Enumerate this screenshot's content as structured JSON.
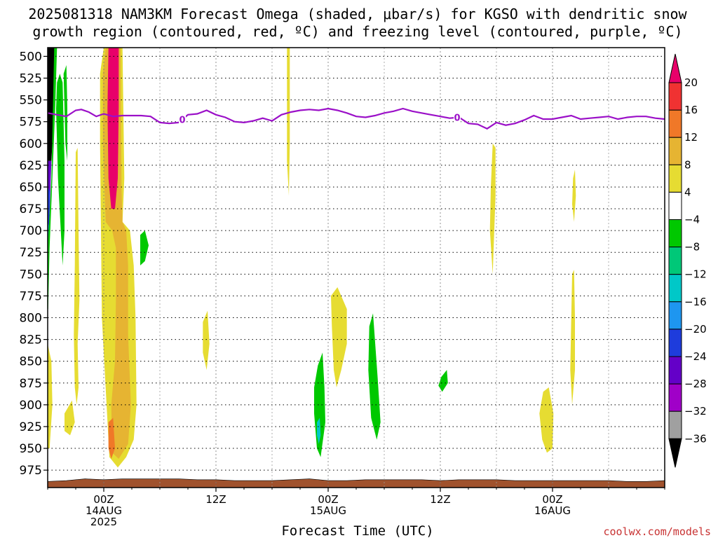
{
  "title": {
    "line1": "2025081318 NAM3KM Forecast Omega (shaded, μbar/s) for KGSO with dendritic snow",
    "line2": "growth region (contoured, red, ºC) and freezing level (contoured, purple, ºC)"
  },
  "credit": "coolwx.com/models",
  "chart_data": {
    "type": "contour",
    "title": "2025081318 NAM3KM Forecast Omega (shaded, μbar/s) for KGSO with dendritic snow growth region (contoured, red, ºC) and freezing level (contoured, purple, ºC)",
    "xlabel": "Forecast Time (UTC)",
    "ylabel": "",
    "x_range_hours": [
      -6,
      60
    ],
    "y_axis": {
      "reversed": true,
      "range": [
        490,
        995
      ],
      "grid": true
    },
    "y_ticks": [
      500,
      525,
      550,
      575,
      600,
      625,
      650,
      675,
      700,
      725,
      750,
      775,
      800,
      825,
      850,
      875,
      900,
      925,
      950,
      975
    ],
    "x_ticks": [
      {
        "hour": 0,
        "lines": [
          "00Z",
          "14AUG",
          "2025"
        ]
      },
      {
        "hour": 12,
        "lines": [
          "12Z"
        ]
      },
      {
        "hour": 24,
        "lines": [
          "00Z",
          "15AUG"
        ]
      },
      {
        "hour": 36,
        "lines": [
          "12Z"
        ]
      },
      {
        "hour": 48,
        "lines": [
          "00Z",
          "16AUG"
        ]
      }
    ],
    "colorbar": {
      "labels": [
        "20",
        "16",
        "12",
        "8",
        "4",
        "−4",
        "−8",
        "−12",
        "−16",
        "−20",
        "−24",
        "−28",
        "−32",
        "−36"
      ],
      "colors": [
        "#e8006a",
        "#f03232",
        "#f07828",
        "#e6b432",
        "#e6dc32",
        "#ffffff",
        "#00c800",
        "#00c878",
        "#00c8c8",
        "#1e96f0",
        "#1e3cdc",
        "#6400c8",
        "#a000c8",
        "#a0a0a0"
      ],
      "top_arrow_color": "#e8006a",
      "bottom_arrow_color": "#000000"
    },
    "freezing_level": {
      "color": "#9b10c8",
      "label": "0",
      "label_hours": [
        8.4,
        37.8
      ],
      "points": [
        [
          -6,
          565
        ],
        [
          -5,
          567
        ],
        [
          -4,
          569
        ],
        [
          -3,
          562
        ],
        [
          -2.4,
          561
        ],
        [
          -1.6,
          564
        ],
        [
          -0.8,
          569
        ],
        [
          0,
          566
        ],
        [
          1,
          569
        ],
        [
          2,
          568
        ],
        [
          3,
          568
        ],
        [
          4,
          568
        ],
        [
          5,
          569
        ],
        [
          6,
          576
        ],
        [
          7,
          577
        ],
        [
          8,
          576
        ],
        [
          9,
          567
        ],
        [
          10,
          566
        ],
        [
          11,
          562
        ],
        [
          12,
          567
        ],
        [
          13,
          570
        ],
        [
          14,
          575
        ],
        [
          15,
          576
        ],
        [
          16,
          574
        ],
        [
          17,
          571
        ],
        [
          18,
          574
        ],
        [
          19,
          567
        ],
        [
          20,
          564
        ],
        [
          21,
          562
        ],
        [
          22,
          561
        ],
        [
          23,
          562
        ],
        [
          24,
          560
        ],
        [
          25,
          562
        ],
        [
          26,
          565
        ],
        [
          27,
          569
        ],
        [
          28,
          570
        ],
        [
          29,
          568
        ],
        [
          30,
          565
        ],
        [
          31,
          563
        ],
        [
          32,
          560
        ],
        [
          33,
          563
        ],
        [
          34,
          565
        ],
        [
          35,
          567
        ],
        [
          36,
          569
        ],
        [
          37,
          571
        ],
        [
          38,
          570
        ],
        [
          39,
          577
        ],
        [
          40,
          578
        ],
        [
          41,
          583
        ],
        [
          42,
          576
        ],
        [
          43,
          579
        ],
        [
          44,
          577
        ],
        [
          45,
          573
        ],
        [
          46,
          568
        ],
        [
          47,
          572
        ],
        [
          48,
          572
        ],
        [
          49,
          570
        ],
        [
          50,
          568
        ],
        [
          51,
          572
        ],
        [
          52,
          571
        ],
        [
          53,
          570
        ],
        [
          54,
          569
        ],
        [
          55,
          572
        ],
        [
          56,
          570
        ],
        [
          57,
          569
        ],
        [
          58,
          569
        ],
        [
          59,
          571
        ],
        [
          60,
          572
        ]
      ]
    },
    "terrain": {
      "color": "#a0522d",
      "points": [
        [
          -6,
          988
        ],
        [
          -4,
          987
        ],
        [
          -2,
          985
        ],
        [
          0,
          986
        ],
        [
          2,
          985
        ],
        [
          4,
          985
        ],
        [
          6,
          985
        ],
        [
          8,
          985
        ],
        [
          10,
          986
        ],
        [
          12,
          986
        ],
        [
          14,
          987
        ],
        [
          16,
          987
        ],
        [
          18,
          987
        ],
        [
          20,
          986
        ],
        [
          22,
          985
        ],
        [
          24,
          987
        ],
        [
          26,
          987
        ],
        [
          28,
          986
        ],
        [
          30,
          986
        ],
        [
          32,
          986
        ],
        [
          34,
          986
        ],
        [
          36,
          987
        ],
        [
          38,
          986
        ],
        [
          40,
          986
        ],
        [
          42,
          986
        ],
        [
          44,
          987
        ],
        [
          46,
          987
        ],
        [
          48,
          987
        ],
        [
          50,
          987
        ],
        [
          52,
          987
        ],
        [
          54,
          987
        ],
        [
          56,
          988
        ],
        [
          58,
          988
        ],
        [
          60,
          987
        ]
      ]
    },
    "omega_regions": [
      {
        "color": "#e6dc32",
        "points": [
          [
            0,
            490
          ],
          [
            2.0,
            490
          ],
          [
            2.2,
            640
          ],
          [
            2.0,
            690
          ],
          [
            2.8,
            700
          ],
          [
            3.2,
            740
          ],
          [
            3.4,
            800
          ],
          [
            3.5,
            900
          ],
          [
            3.2,
            940
          ],
          [
            2.4,
            960
          ],
          [
            1.5,
            972
          ],
          [
            0.6,
            960
          ],
          [
            0.3,
            900
          ],
          [
            -0.2,
            800
          ],
          [
            -0.3,
            700
          ],
          [
            -0.4,
            600
          ],
          [
            -0.4,
            520
          ]
        ]
      },
      {
        "color": "#e6b432",
        "points": [
          [
            0.2,
            490
          ],
          [
            1.8,
            490
          ],
          [
            1.9,
            650
          ],
          [
            2.0,
            690
          ],
          [
            2.4,
            700
          ],
          [
            2.6,
            740
          ],
          [
            2.6,
            820
          ],
          [
            2.9,
            900
          ],
          [
            2.6,
            945
          ],
          [
            1.6,
            962
          ],
          [
            0.9,
            955
          ],
          [
            0.8,
            900
          ],
          [
            1.2,
            850
          ],
          [
            1.3,
            780
          ],
          [
            1.3,
            720
          ],
          [
            0.9,
            700
          ],
          [
            0.2,
            690
          ],
          [
            -0.1,
            600
          ],
          [
            -0.1,
            520
          ]
        ]
      },
      {
        "color": "#e8006a",
        "points": [
          [
            0.5,
            490
          ],
          [
            1.6,
            490
          ],
          [
            1.6,
            560
          ],
          [
            1.5,
            640
          ],
          [
            1.2,
            675
          ],
          [
            0.8,
            675
          ],
          [
            0.5,
            640
          ],
          [
            0.4,
            560
          ]
        ]
      },
      {
        "color": "#f07828",
        "points": [
          [
            0.5,
            920
          ],
          [
            1.0,
            915
          ],
          [
            1.2,
            950
          ],
          [
            0.8,
            962
          ],
          [
            0.5,
            950
          ]
        ]
      },
      {
        "color": "#00c800",
        "points": [
          [
            -5.0,
            530
          ],
          [
            -4.7,
            520
          ],
          [
            -4.4,
            530
          ],
          [
            -4.2,
            620
          ],
          [
            -4.2,
            700
          ],
          [
            -4.4,
            740
          ],
          [
            -4.6,
            700
          ],
          [
            -4.9,
            640
          ],
          [
            -5.1,
            560
          ]
        ]
      },
      {
        "color": "#00c800",
        "points": [
          [
            -4.3,
            520
          ],
          [
            -4.0,
            510
          ],
          [
            -3.9,
            560
          ],
          [
            -3.9,
            620
          ],
          [
            -4.1,
            600
          ]
        ]
      },
      {
        "color": "#00c800",
        "points": [
          [
            3.9,
            705
          ],
          [
            4.4,
            700
          ],
          [
            4.8,
            717
          ],
          [
            4.4,
            735
          ],
          [
            3.9,
            740
          ]
        ]
      },
      {
        "color": "#e6dc32",
        "points": [
          [
            -3.0,
            610
          ],
          [
            -2.8,
            605
          ],
          [
            -2.7,
            700
          ],
          [
            -2.6,
            780
          ],
          [
            -2.8,
            830
          ],
          [
            -2.7,
            880
          ],
          [
            -2.9,
            900
          ],
          [
            -3.1,
            880
          ],
          [
            -3.2,
            820
          ],
          [
            -3.1,
            740
          ]
        ]
      },
      {
        "color": "#e6dc32",
        "points": [
          [
            -4.2,
            910
          ],
          [
            -3.4,
            895
          ],
          [
            -3.1,
            920
          ],
          [
            -3.6,
            935
          ],
          [
            -4.2,
            930
          ]
        ]
      },
      {
        "color": "#e6dc32",
        "points": [
          [
            -6,
            830
          ],
          [
            -5.6,
            850
          ],
          [
            -5.5,
            900
          ],
          [
            -5.8,
            950
          ],
          [
            -6,
            950
          ]
        ]
      },
      {
        "color": "#e6dc32",
        "points": [
          [
            10.6,
            805
          ],
          [
            11.1,
            792
          ],
          [
            11.3,
            830
          ],
          [
            11.0,
            860
          ],
          [
            10.6,
            840
          ]
        ]
      },
      {
        "color": "#e6dc32",
        "points": [
          [
            19.6,
            470
          ],
          [
            19.9,
            470
          ],
          [
            19.9,
            600
          ],
          [
            19.8,
            660
          ],
          [
            19.6,
            620
          ]
        ]
      },
      {
        "color": "#e6dc32",
        "points": [
          [
            24.3,
            775
          ],
          [
            25.0,
            765
          ],
          [
            26.0,
            790
          ],
          [
            26.0,
            830
          ],
          [
            25.4,
            860
          ],
          [
            24.9,
            880
          ],
          [
            24.6,
            860
          ],
          [
            24.4,
            810
          ]
        ]
      },
      {
        "color": "#00c800",
        "points": [
          [
            22.5,
            880
          ],
          [
            22.9,
            855
          ],
          [
            23.4,
            840
          ],
          [
            23.6,
            880
          ],
          [
            23.7,
            920
          ],
          [
            23.2,
            960
          ],
          [
            22.8,
            950
          ],
          [
            22.5,
            910
          ]
        ]
      },
      {
        "color": "#00c8c8",
        "points": [
          [
            22.8,
            920
          ],
          [
            23.1,
            915
          ],
          [
            23.2,
            935
          ],
          [
            23.0,
            945
          ],
          [
            22.8,
            935
          ]
        ]
      },
      {
        "color": "#00c800",
        "points": [
          [
            28.4,
            810
          ],
          [
            28.8,
            795
          ],
          [
            29.3,
            870
          ],
          [
            29.6,
            920
          ],
          [
            29.2,
            940
          ],
          [
            28.6,
            915
          ],
          [
            28.3,
            860
          ]
        ]
      },
      {
        "color": "#00c800",
        "points": [
          [
            36.1,
            868
          ],
          [
            36.7,
            860
          ],
          [
            36.8,
            875
          ],
          [
            36.2,
            885
          ],
          [
            35.8,
            878
          ]
        ]
      },
      {
        "color": "#e6dc32",
        "points": [
          [
            41.6,
            600
          ],
          [
            41.9,
            605
          ],
          [
            41.9,
            660
          ],
          [
            41.6,
            750
          ],
          [
            41.3,
            700
          ],
          [
            41.4,
            650
          ]
        ]
      },
      {
        "color": "#e6dc32",
        "points": [
          [
            50.2,
            640
          ],
          [
            50.4,
            630
          ],
          [
            50.5,
            660
          ],
          [
            50.3,
            690
          ],
          [
            50.1,
            670
          ]
        ]
      },
      {
        "color": "#e6dc32",
        "points": [
          [
            50.1,
            750
          ],
          [
            50.3,
            745
          ],
          [
            50.4,
            800
          ],
          [
            50.4,
            860
          ],
          [
            50.1,
            900
          ],
          [
            49.9,
            860
          ],
          [
            50.0,
            800
          ]
        ]
      },
      {
        "color": "#e6dc32",
        "points": [
          [
            46.6,
            910
          ],
          [
            47.0,
            885
          ],
          [
            47.6,
            880
          ],
          [
            48.1,
            910
          ],
          [
            48.0,
            950
          ],
          [
            47.4,
            955
          ],
          [
            46.9,
            940
          ]
        ]
      }
    ],
    "left_edge_band": {
      "colors": [
        "#000000",
        "#6400c8",
        "#1e3cdc",
        "#1e96f0",
        "#00c8c8",
        "#00c800"
      ],
      "note": "narrow strong-negative band along left edge"
    }
  }
}
